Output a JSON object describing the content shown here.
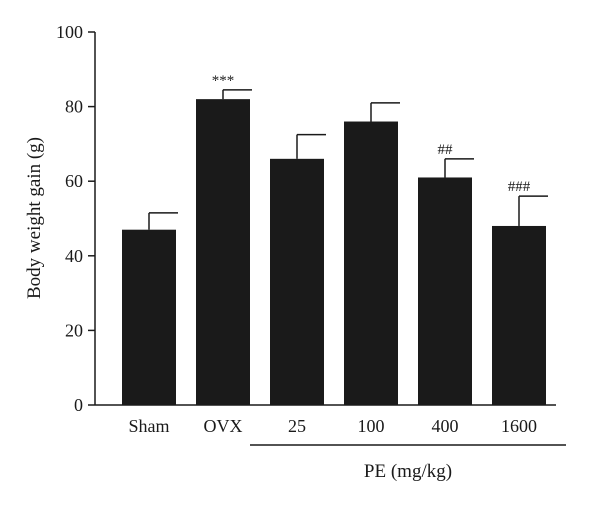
{
  "chart_data": {
    "type": "bar",
    "categories": [
      "Sham",
      "OVX",
      "25",
      "100",
      "400",
      "1600"
    ],
    "values": [
      47,
      82,
      66,
      76,
      61,
      48
    ],
    "error": [
      4.5,
      2.5,
      6.5,
      5,
      5,
      8
    ],
    "annotations": [
      "",
      "***",
      "",
      "",
      "##",
      "###"
    ],
    "ylabel": "Body weight gain (g)",
    "ylim": [
      0,
      100
    ],
    "yticks": [
      0,
      20,
      40,
      60,
      80,
      100
    ],
    "group_label": "PE (mg/kg)",
    "group_categories": [
      "25",
      "100",
      "400",
      "1600"
    ],
    "bar_color": "#1a1a1a",
    "grid": false
  }
}
